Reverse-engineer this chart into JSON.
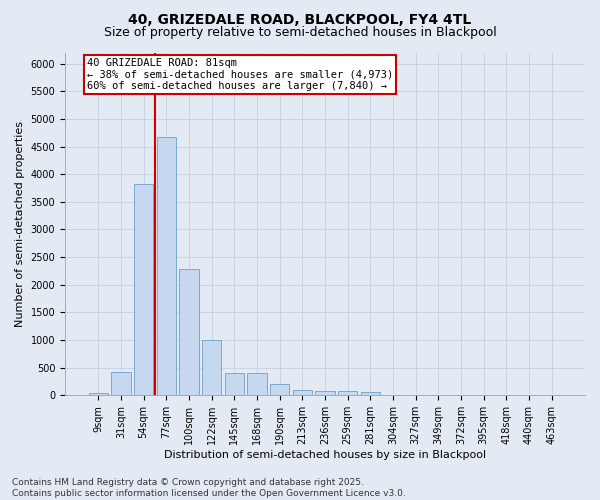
{
  "title1": "40, GRIZEDALE ROAD, BLACKPOOL, FY4 4TL",
  "title2": "Size of property relative to semi-detached houses in Blackpool",
  "xlabel": "Distribution of semi-detached houses by size in Blackpool",
  "ylabel": "Number of semi-detached properties",
  "categories": [
    "9sqm",
    "31sqm",
    "54sqm",
    "77sqm",
    "100sqm",
    "122sqm",
    "145sqm",
    "168sqm",
    "190sqm",
    "213sqm",
    "236sqm",
    "259sqm",
    "281sqm",
    "304sqm",
    "327sqm",
    "349sqm",
    "372sqm",
    "395sqm",
    "418sqm",
    "440sqm",
    "463sqm"
  ],
  "values": [
    50,
    430,
    3820,
    4680,
    2280,
    1000,
    410,
    410,
    200,
    100,
    80,
    70,
    60,
    0,
    0,
    0,
    0,
    0,
    0,
    0,
    0
  ],
  "bar_color": "#c5d8f0",
  "bar_edge_color": "#7aaad0",
  "vline_position": 2.5,
  "vline_color": "#cc0000",
  "annotation_text": "40 GRIZEDALE ROAD: 81sqm\n← 38% of semi-detached houses are smaller (4,973)\n60% of semi-detached houses are larger (7,840) →",
  "annotation_box_facecolor": "#ffffff",
  "annotation_box_edgecolor": "#cc0000",
  "ylim": [
    0,
    6200
  ],
  "yticks": [
    0,
    500,
    1000,
    1500,
    2000,
    2500,
    3000,
    3500,
    4000,
    4500,
    5000,
    5500,
    6000
  ],
  "grid_color": "#c8d4e4",
  "bg_color": "#e4eaf4",
  "footer_line1": "Contains HM Land Registry data © Crown copyright and database right 2025.",
  "footer_line2": "Contains public sector information licensed under the Open Government Licence v3.0.",
  "title1_fontsize": 10,
  "title2_fontsize": 9,
  "xlabel_fontsize": 8,
  "ylabel_fontsize": 8,
  "tick_fontsize": 7,
  "annotation_fontsize": 7.5,
  "footer_fontsize": 6.5
}
